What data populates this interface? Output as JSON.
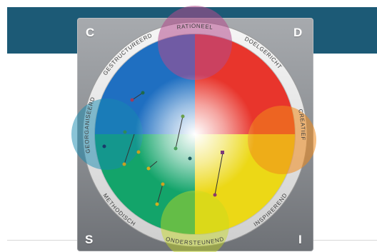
{
  "corners": {
    "c": "C",
    "d": "D",
    "s": "S",
    "i": "I"
  },
  "ring_labels": [
    {
      "id": "rationeel",
      "text": "RATIONEEL",
      "angle": 0
    },
    {
      "id": "doelgericht",
      "text": "DOELGERICHT",
      "angle": 40
    },
    {
      "id": "creatief",
      "text": "CREATIEF",
      "angle": 85
    },
    {
      "id": "inspirerend",
      "text": "INSPIREREND",
      "angle": 135
    },
    {
      "id": "ondersteunend",
      "text": "ONDERSTEUNEND",
      "angle": 180
    },
    {
      "id": "methodisch",
      "text": "METHODISCH",
      "angle": 225
    },
    {
      "id": "georganiseerd",
      "text": "GEORGANISEERD",
      "angle": 275
    },
    {
      "id": "gestructureerd",
      "text": "GESTRUCTUREERD",
      "angle": 320
    }
  ],
  "colors": {
    "banner": "#1c5a76",
    "red": "#e8352c",
    "blue": "#1f6fc1",
    "green": "#13a46a",
    "yellow": "#ecd816"
  },
  "markers": [
    {
      "id": "m1",
      "label": "",
      "color": "#2e8b57",
      "shape": "dot"
    },
    {
      "id": "m2",
      "label": "",
      "color": "#b04a6a",
      "shape": "dot"
    },
    {
      "id": "m3",
      "label": "",
      "color": "#5a8f3a",
      "shape": "dot"
    },
    {
      "id": "m4",
      "label": "",
      "color": "#2a7a6a",
      "shape": "dot"
    },
    {
      "id": "m5",
      "label": "",
      "color": "#7b3a7a",
      "shape": "square"
    },
    {
      "id": "m6",
      "label": "",
      "color": "#8c3a6a",
      "shape": "dot"
    },
    {
      "id": "m7",
      "label": "",
      "color": "#d0a020",
      "shape": "dot"
    },
    {
      "id": "m8",
      "label": "",
      "color": "#d0b020",
      "shape": "dot"
    }
  ]
}
